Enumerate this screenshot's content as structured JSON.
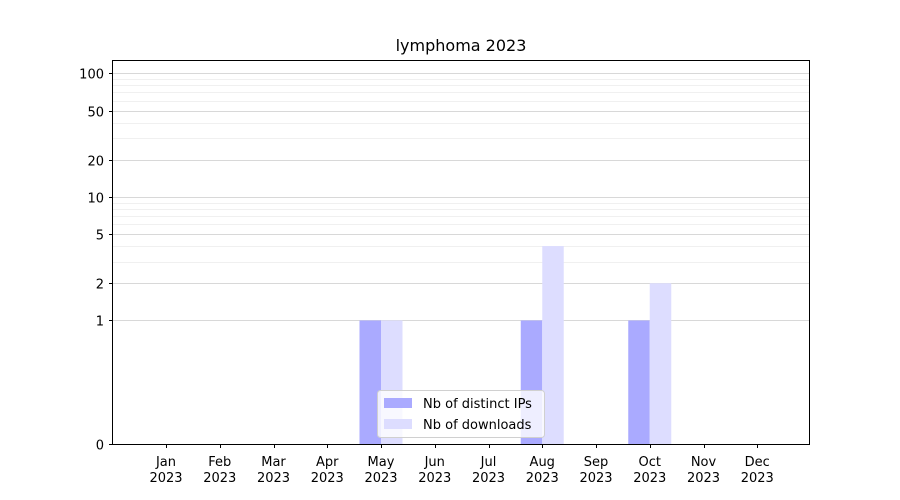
{
  "chart_data": {
    "type": "bar",
    "title": "lymphoma 2023",
    "xlabel": "",
    "ylabel": "",
    "y_scale": "symlog",
    "ylim": [
      0,
      100
    ],
    "y_ticks": [
      0,
      1,
      2,
      5,
      10,
      20,
      50,
      100
    ],
    "categories": [
      [
        "Jan",
        "2023"
      ],
      [
        "Feb",
        "2023"
      ],
      [
        "Mar",
        "2023"
      ],
      [
        "Apr",
        "2023"
      ],
      [
        "May",
        "2023"
      ],
      [
        "Jun",
        "2023"
      ],
      [
        "Jul",
        "2023"
      ],
      [
        "Aug",
        "2023"
      ],
      [
        "Sep",
        "2023"
      ],
      [
        "Oct",
        "2023"
      ],
      [
        "Nov",
        "2023"
      ],
      [
        "Dec",
        "2023"
      ]
    ],
    "series": [
      {
        "name": "Nb of distinct IPs",
        "color": "#aaaaff",
        "values": [
          0,
          0,
          0,
          0,
          1,
          0,
          0,
          1,
          0,
          1,
          0,
          0
        ]
      },
      {
        "name": "Nb of downloads",
        "color": "#ddddff",
        "values": [
          0,
          0,
          0,
          0,
          1,
          0,
          0,
          4,
          0,
          2,
          0,
          0
        ]
      }
    ],
    "legend_position": "lower center",
    "grid": true
  }
}
